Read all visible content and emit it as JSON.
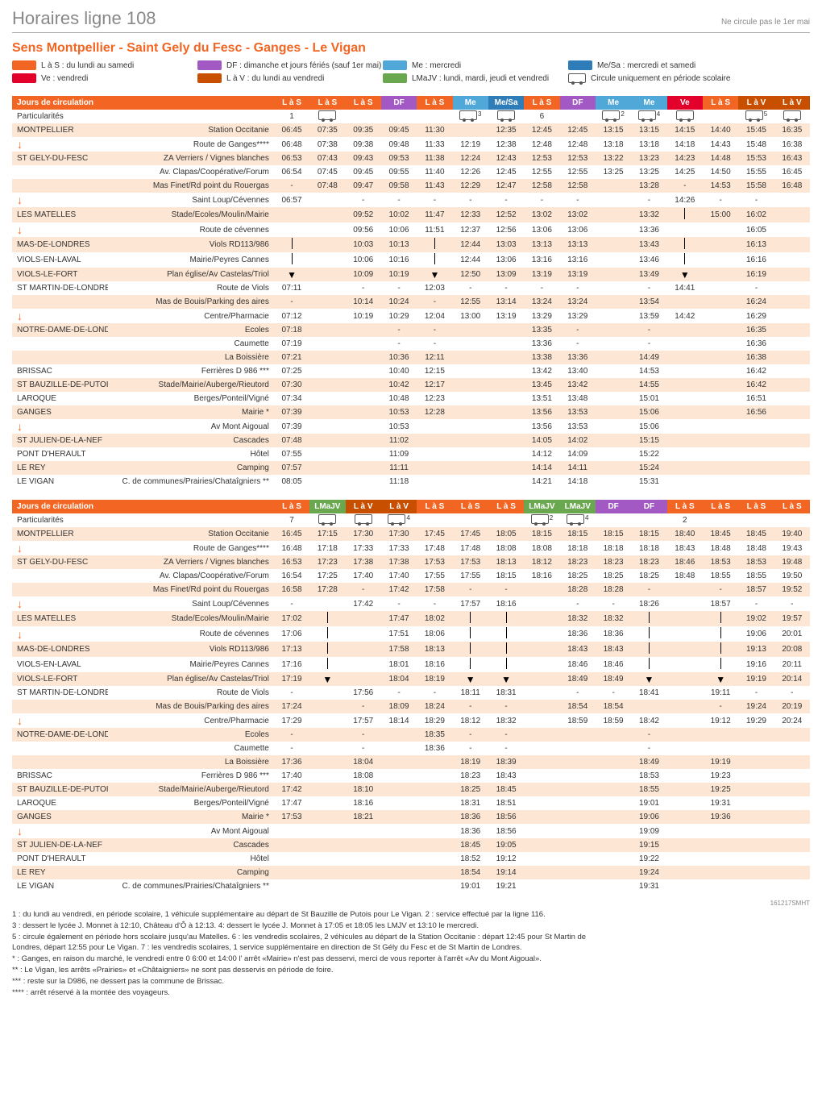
{
  "header": {
    "title": "Horaires ligne 108",
    "note": "Ne circule pas le 1er mai"
  },
  "direction": "Sens Montpellier - Saint Gely du Fesc - Ganges - Le Vigan",
  "colors": {
    "orange": "#f26522",
    "LaS": "#f26522",
    "DF": "#a259c4",
    "Me": "#4fa8d8",
    "MeSa": "#2e7cb8",
    "Ve": "#e3002b",
    "LaV": "#c94f00",
    "LMaJV": "#6aa84f",
    "stripe": "#fde6d3"
  },
  "legend": [
    {
      "type": "sw",
      "color": "#f26522",
      "label": "L à S : du lundi au samedi"
    },
    {
      "type": "sw",
      "color": "#a259c4",
      "label": "DF : dimanche et jours fériés (sauf 1er mai)"
    },
    {
      "type": "sw",
      "color": "#4fa8d8",
      "label": "Me : mercredi"
    },
    {
      "type": "sw",
      "color": "#2e7cb8",
      "label": "Me/Sa : mercredi et samedi"
    },
    {
      "type": "sw",
      "color": "#e3002b",
      "label": "Ve : vendredi"
    },
    {
      "type": "sw",
      "color": "#c94f00",
      "label": "L à V : du lundi au vendredi"
    },
    {
      "type": "sw",
      "color": "#6aa84f",
      "label": "LMaJV : lundi, mardi, jeudi et vendredi"
    },
    {
      "type": "bus",
      "label": "Circule uniquement en période scolaire"
    }
  ],
  "header_label": "Jours de circulation",
  "partic_label": "Particularités",
  "columns1": [
    {
      "code": "L à S",
      "key": "LaS"
    },
    {
      "code": "L à S",
      "key": "LaS"
    },
    {
      "code": "L à S",
      "key": "LaS"
    },
    {
      "code": "DF",
      "key": "DF"
    },
    {
      "code": "L à S",
      "key": "LaS"
    },
    {
      "code": "Me",
      "key": "Me"
    },
    {
      "code": "Me/Sa",
      "key": "MeSa"
    },
    {
      "code": "L à S",
      "key": "LaS"
    },
    {
      "code": "DF",
      "key": "DF"
    },
    {
      "code": "Me",
      "key": "Me"
    },
    {
      "code": "Me",
      "key": "Me"
    },
    {
      "code": "Ve",
      "key": "Ve"
    },
    {
      "code": "L à S",
      "key": "LaS"
    },
    {
      "code": "L à V",
      "key": "LaV"
    },
    {
      "code": "L à V",
      "key": "LaV"
    }
  ],
  "partic1": [
    "1",
    "BUS",
    "",
    "",
    "",
    "BUS3",
    "BUS",
    "6",
    "",
    "BUS2",
    "BUS4",
    "BUS",
    "",
    "BUS5",
    "BUS"
  ],
  "columns2": [
    {
      "code": "L à S",
      "key": "LaS"
    },
    {
      "code": "LMaJV",
      "key": "LMaJV"
    },
    {
      "code": "L à V",
      "key": "LaV"
    },
    {
      "code": "L à V",
      "key": "LaV"
    },
    {
      "code": "L à S",
      "key": "LaS"
    },
    {
      "code": "L à S",
      "key": "LaS"
    },
    {
      "code": "L à S",
      "key": "LaS"
    },
    {
      "code": "LMaJV",
      "key": "LMaJV"
    },
    {
      "code": "LMaJV",
      "key": "LMaJV"
    },
    {
      "code": "DF",
      "key": "DF"
    },
    {
      "code": "DF",
      "key": "DF"
    },
    {
      "code": "L à S",
      "key": "LaS"
    },
    {
      "code": "L à S",
      "key": "LaS"
    },
    {
      "code": "L à S",
      "key": "LaS"
    },
    {
      "code": "L à S",
      "key": "LaS"
    }
  ],
  "partic2": [
    "7",
    "BUS",
    "BUS",
    "BUS4",
    "",
    "",
    "",
    "BUS2",
    "BUS4",
    "",
    "",
    "2",
    "",
    "",
    ""
  ],
  "stops": [
    {
      "town": "MONTPELLIER",
      "stop": "Station Occitanie",
      "arrow": false
    },
    {
      "town": "↓",
      "stop": "Route de Ganges****",
      "arrow": true
    },
    {
      "town": "ST GELY-DU-FESC",
      "stop": "ZA Verriers / Vignes blanches",
      "arrow": false
    },
    {
      "town": "",
      "stop": "Av. Clapas/Coopérative/Forum",
      "arrow": false
    },
    {
      "town": "",
      "stop": "Mas Finet/Rd point du Rouergas",
      "arrow": false
    },
    {
      "town": "↓",
      "stop": "Saint Loup/Cévennes",
      "arrow": true
    },
    {
      "town": "LES MATELLES",
      "stop": "Stade/Ecoles/Moulin/Mairie",
      "arrow": false
    },
    {
      "town": "↓",
      "stop": "Route de cévennes",
      "arrow": true
    },
    {
      "town": "MAS-DE-LONDRES",
      "stop": "Viols RD113/986",
      "arrow": false
    },
    {
      "town": "VIOLS-EN-LAVAL",
      "stop": "Mairie/Peyres Cannes",
      "arrow": false
    },
    {
      "town": "VIOLS-LE-FORT",
      "stop": "Plan église/Av Castelas/Triol",
      "arrow": false
    },
    {
      "town": "ST MARTIN-DE-LONDRES",
      "stop": "Route de Viols",
      "arrow": false
    },
    {
      "town": "",
      "stop": "Mas de Bouis/Parking des aires",
      "arrow": false
    },
    {
      "town": "↓",
      "stop": "Centre/Pharmacie",
      "arrow": true
    },
    {
      "town": "NOTRE-DAME-DE-LONDRES",
      "stop": "Ecoles",
      "arrow": false
    },
    {
      "town": "",
      "stop": "Caumette",
      "arrow": false
    },
    {
      "town": "",
      "stop": "La Boissière",
      "arrow": false
    },
    {
      "town": "BRISSAC",
      "stop": "Ferrières D 986 ***",
      "arrow": false
    },
    {
      "town": "ST BAUZILLE-DE-PUTOIS",
      "stop": "Stade/Mairie/Auberge/Rieutord",
      "arrow": false
    },
    {
      "town": "LAROQUE",
      "stop": "Berges/Ponteil/Vigné",
      "arrow": false
    },
    {
      "town": "GANGES",
      "stop": "Mairie *",
      "arrow": false
    },
    {
      "town": "↓",
      "stop": "Av Mont Aigoual",
      "arrow": true
    },
    {
      "town": "ST JULIEN-DE-LA-NEF",
      "stop": "Cascades",
      "arrow": false
    },
    {
      "town": "PONT D'HERAULT",
      "stop": "Hôtel",
      "arrow": false
    },
    {
      "town": "LE REY",
      "stop": "Camping",
      "arrow": false
    },
    {
      "town": "LE VIGAN",
      "stop": "C. de communes/Prairies/Chataîgniers **",
      "arrow": false
    }
  ],
  "data1": [
    [
      "06:45",
      "07:35",
      "09:35",
      "09:45",
      "11:30",
      "",
      "12:35",
      "12:45",
      "12:45",
      "13:15",
      "13:15",
      "14:15",
      "14:40",
      "15:45",
      "16:35"
    ],
    [
      "06:48",
      "07:38",
      "09:38",
      "09:48",
      "11:33",
      "12:19",
      "12:38",
      "12:48",
      "12:48",
      "13:18",
      "13:18",
      "14:18",
      "14:43",
      "15:48",
      "16:38"
    ],
    [
      "06:53",
      "07:43",
      "09:43",
      "09:53",
      "11:38",
      "12:24",
      "12:43",
      "12:53",
      "12:53",
      "13:22",
      "13:23",
      "14:23",
      "14:48",
      "15:53",
      "16:43"
    ],
    [
      "06:54",
      "07:45",
      "09:45",
      "09:55",
      "11:40",
      "12:26",
      "12:45",
      "12:55",
      "12:55",
      "13:25",
      "13:25",
      "14:25",
      "14:50",
      "15:55",
      "16:45"
    ],
    [
      "-",
      "07:48",
      "09:47",
      "09:58",
      "11:43",
      "12:29",
      "12:47",
      "12:58",
      "12:58",
      "",
      "13:28",
      "-",
      "14:53",
      "15:58",
      "16:48"
    ],
    [
      "06:57",
      "",
      "-",
      "-",
      "-",
      "-",
      "-",
      "-",
      "-",
      "",
      "-",
      "14:26",
      "-",
      "-",
      ""
    ],
    [
      "",
      "",
      "09:52",
      "10:02",
      "11:47",
      "12:33",
      "12:52",
      "13:02",
      "13:02",
      "",
      "13:32",
      "|",
      "15:00",
      "16:02",
      ""
    ],
    [
      "",
      "",
      "09:56",
      "10:06",
      "11:51",
      "12:37",
      "12:56",
      "13:06",
      "13:06",
      "",
      "13:36",
      "",
      "",
      "16:05",
      ""
    ],
    [
      "|",
      "",
      "10:03",
      "10:13",
      "|",
      "12:44",
      "13:03",
      "13:13",
      "13:13",
      "",
      "13:43",
      "|",
      "",
      "16:13",
      ""
    ],
    [
      "|",
      "",
      "10:06",
      "10:16",
      "|",
      "12:44",
      "13:06",
      "13:16",
      "13:16",
      "",
      "13:46",
      "|",
      "",
      "16:16",
      ""
    ],
    [
      "▼",
      "",
      "10:09",
      "10:19",
      "▼",
      "12:50",
      "13:09",
      "13:19",
      "13:19",
      "",
      "13:49",
      "▼",
      "",
      "16:19",
      ""
    ],
    [
      "07:11",
      "",
      "-",
      "-",
      "12:03",
      "-",
      "-",
      "-",
      "-",
      "",
      "-",
      "14:41",
      "",
      "-",
      ""
    ],
    [
      "-",
      "",
      "10:14",
      "10:24",
      "-",
      "12:55",
      "13:14",
      "13:24",
      "13:24",
      "",
      "13:54",
      "",
      "",
      "16:24",
      ""
    ],
    [
      "07:12",
      "",
      "10:19",
      "10:29",
      "12:04",
      "13:00",
      "13:19",
      "13:29",
      "13:29",
      "",
      "13:59",
      "14:42",
      "",
      "16:29",
      ""
    ],
    [
      "07:18",
      "",
      "",
      "-",
      "-",
      "",
      "",
      "13:35",
      "-",
      "",
      "-",
      "",
      "",
      "16:35",
      ""
    ],
    [
      "07:19",
      "",
      "",
      "-",
      "-",
      "",
      "",
      "13:36",
      "-",
      "",
      "-",
      "",
      "",
      "16:36",
      ""
    ],
    [
      "07:21",
      "",
      "",
      "10:36",
      "12:11",
      "",
      "",
      "13:38",
      "13:36",
      "",
      "14:49",
      "",
      "",
      "16:38",
      ""
    ],
    [
      "07:25",
      "",
      "",
      "10:40",
      "12:15",
      "",
      "",
      "13:42",
      "13:40",
      "",
      "14:53",
      "",
      "",
      "16:42",
      ""
    ],
    [
      "07:30",
      "",
      "",
      "10:42",
      "12:17",
      "",
      "",
      "13:45",
      "13:42",
      "",
      "14:55",
      "",
      "",
      "16:42",
      ""
    ],
    [
      "07:34",
      "",
      "",
      "10:48",
      "12:23",
      "",
      "",
      "13:51",
      "13:48",
      "",
      "15:01",
      "",
      "",
      "16:51",
      ""
    ],
    [
      "07:39",
      "",
      "",
      "10:53",
      "12:28",
      "",
      "",
      "13:56",
      "13:53",
      "",
      "15:06",
      "",
      "",
      "16:56",
      ""
    ],
    [
      "07:39",
      "",
      "",
      "10:53",
      "",
      "",
      "",
      "13:56",
      "13:53",
      "",
      "15:06",
      "",
      "",
      "",
      ""
    ],
    [
      "07:48",
      "",
      "",
      "11:02",
      "",
      "",
      "",
      "14:05",
      "14:02",
      "",
      "15:15",
      "",
      "",
      "",
      ""
    ],
    [
      "07:55",
      "",
      "",
      "11:09",
      "",
      "",
      "",
      "14:12",
      "14:09",
      "",
      "15:22",
      "",
      "",
      "",
      ""
    ],
    [
      "07:57",
      "",
      "",
      "11:11",
      "",
      "",
      "",
      "14:14",
      "14:11",
      "",
      "15:24",
      "",
      "",
      "",
      ""
    ],
    [
      "08:05",
      "",
      "",
      "11:18",
      "",
      "",
      "",
      "14:21",
      "14:18",
      "",
      "15:31",
      "",
      "",
      "",
      ""
    ]
  ],
  "data2": [
    [
      "16:45",
      "17:15",
      "17:30",
      "17:30",
      "17:45",
      "17:45",
      "18:05",
      "18:15",
      "18:15",
      "18:15",
      "18:15",
      "18:40",
      "18:45",
      "18:45",
      "19:40"
    ],
    [
      "16:48",
      "17:18",
      "17:33",
      "17:33",
      "17:48",
      "17:48",
      "18:08",
      "18:08",
      "18:18",
      "18:18",
      "18:18",
      "18:43",
      "18:48",
      "18:48",
      "19:43"
    ],
    [
      "16:53",
      "17:23",
      "17:38",
      "17:38",
      "17:53",
      "17:53",
      "18:13",
      "18:12",
      "18:23",
      "18:23",
      "18:23",
      "18:46",
      "18:53",
      "18:53",
      "19:48"
    ],
    [
      "16:54",
      "17:25",
      "17:40",
      "17:40",
      "17:55",
      "17:55",
      "18:15",
      "18:16",
      "18:25",
      "18:25",
      "18:25",
      "18:48",
      "18:55",
      "18:55",
      "19:50"
    ],
    [
      "16:58",
      "17:28",
      "-",
      "17:42",
      "17:58",
      "-",
      "-",
      "",
      "18:28",
      "18:28",
      "-",
      "",
      "-",
      "18:57",
      "19:52"
    ],
    [
      "-",
      "",
      "17:42",
      "-",
      "-",
      "17:57",
      "18:16",
      "",
      "-",
      "-",
      "18:26",
      "",
      "18:57",
      "-",
      "-"
    ],
    [
      "17:02",
      "|",
      "",
      "17:47",
      "18:02",
      "|",
      "|",
      "",
      "18:32",
      "18:32",
      "|",
      "",
      "|",
      "19:02",
      "19:57"
    ],
    [
      "17:06",
      "|",
      "",
      "17:51",
      "18:06",
      "|",
      "|",
      "",
      "18:36",
      "18:36",
      "|",
      "",
      "|",
      "19:06",
      "20:01"
    ],
    [
      "17:13",
      "|",
      "",
      "17:58",
      "18:13",
      "|",
      "|",
      "",
      "18:43",
      "18:43",
      "|",
      "",
      "|",
      "19:13",
      "20:08"
    ],
    [
      "17:16",
      "|",
      "",
      "18:01",
      "18:16",
      "|",
      "|",
      "",
      "18:46",
      "18:46",
      "|",
      "",
      "|",
      "19:16",
      "20:11"
    ],
    [
      "17:19",
      "▼",
      "",
      "18:04",
      "18:19",
      "▼",
      "▼",
      "",
      "18:49",
      "18:49",
      "▼",
      "",
      "▼",
      "19:19",
      "20:14"
    ],
    [
      "-",
      "",
      "17:56",
      "-",
      "-",
      "18:11",
      "18:31",
      "",
      "-",
      "-",
      "18:41",
      "",
      "19:11",
      "-",
      "-"
    ],
    [
      "17:24",
      "",
      "-",
      "18:09",
      "18:24",
      "-",
      "-",
      "",
      "18:54",
      "18:54",
      "",
      "",
      "-",
      "19:24",
      "20:19"
    ],
    [
      "17:29",
      "",
      "17:57",
      "18:14",
      "18:29",
      "18:12",
      "18:32",
      "",
      "18:59",
      "18:59",
      "18:42",
      "",
      "19:12",
      "19:29",
      "20:24"
    ],
    [
      "-",
      "",
      "-",
      "",
      "18:35",
      "-",
      "-",
      "",
      "",
      "",
      "-",
      "",
      "",
      "",
      ""
    ],
    [
      "-",
      "",
      "-",
      "",
      "18:36",
      "-",
      "-",
      "",
      "",
      "",
      "-",
      "",
      "",
      "",
      ""
    ],
    [
      "17:36",
      "",
      "18:04",
      "",
      "",
      "18:19",
      "18:39",
      "",
      "",
      "",
      "18:49",
      "",
      "19:19",
      "",
      ""
    ],
    [
      "17:40",
      "",
      "18:08",
      "",
      "",
      "18:23",
      "18:43",
      "",
      "",
      "",
      "18:53",
      "",
      "19:23",
      "",
      ""
    ],
    [
      "17:42",
      "",
      "18:10",
      "",
      "",
      "18:25",
      "18:45",
      "",
      "",
      "",
      "18:55",
      "",
      "19:25",
      "",
      ""
    ],
    [
      "17:47",
      "",
      "18:16",
      "",
      "",
      "18:31",
      "18:51",
      "",
      "",
      "",
      "19:01",
      "",
      "19:31",
      "",
      ""
    ],
    [
      "17:53",
      "",
      "18:21",
      "",
      "",
      "18:36",
      "18:56",
      "",
      "",
      "",
      "19:06",
      "",
      "19:36",
      "",
      ""
    ],
    [
      "",
      "",
      "",
      "",
      "",
      "18:36",
      "18:56",
      "",
      "",
      "",
      "19:09",
      "",
      "",
      "",
      ""
    ],
    [
      "",
      "",
      "",
      "",
      "",
      "18:45",
      "19:05",
      "",
      "",
      "",
      "19:15",
      "",
      "",
      "",
      ""
    ],
    [
      "",
      "",
      "",
      "",
      "",
      "18:52",
      "19:12",
      "",
      "",
      "",
      "19:22",
      "",
      "",
      "",
      ""
    ],
    [
      "",
      "",
      "",
      "",
      "",
      "18:54",
      "19:14",
      "",
      "",
      "",
      "19:24",
      "",
      "",
      "",
      ""
    ],
    [
      "",
      "",
      "",
      "",
      "",
      "19:01",
      "19:21",
      "",
      "",
      "",
      "19:31",
      "",
      "",
      "",
      ""
    ]
  ],
  "footnotes": [
    "1 : du lundi au vendredi, en période scolaire, 1 véhicule supplémentaire au départ de St Bauzille de Putois pour Le Vigan. 2 : service effectué par la ligne 116.",
    "3 : dessert le lycée J. Monnet à 12:10, Château d'Ô à 12:13.  4: dessert le lycée J. Monnet à 17:05 et 18:05 les LMJV et 13:10 le mercredi.",
    "5 : circule également en période hors scolaire jusqu'au Matelles.  6 : les vendredis scolaires, 2 véhicules au départ de la Station Occitanie : départ 12:45 pour  St Martin de",
    "Londres, départ 12:55 pour Le Vigan. 7 : les vendredis scolaires, 1 service supplémentaire en direction de St Gély du Fesc et de St Martin de Londres.",
    " * : Ganges, en raison du marché, le vendredi entre 0 6:00 et 14:00 l' arrêt «Mairie» n'est pas desservi, merci de vous reporter à l'arrêt «Av du Mont Aigoual».",
    " ** : Le Vigan, les arrêts «Prairies» et «Châtaigniers» ne sont pas desservis en période de foire.",
    " *** : reste sur la D986, ne dessert pas la commune de Brissac.",
    "**** : arrêt réservé à la montée des voyageurs."
  ],
  "page_ref": "161217SMHT"
}
